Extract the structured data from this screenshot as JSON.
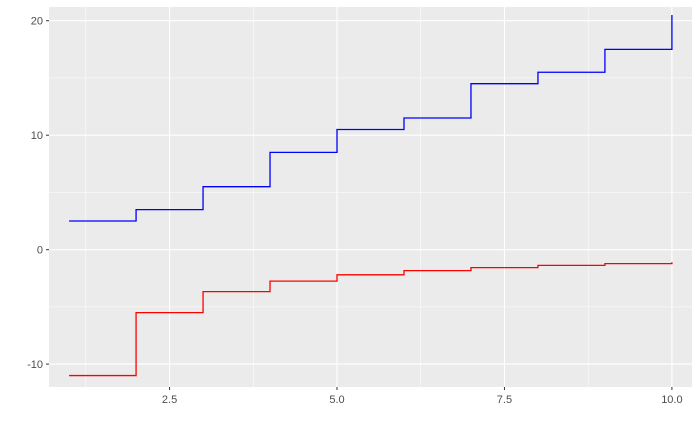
{
  "chart_data": {
    "type": "line",
    "step": true,
    "title": "",
    "xlabel": "",
    "ylabel": "",
    "xlim": [
      0.7,
      10.3
    ],
    "ylim": [
      -12.0,
      21.2
    ],
    "xticks": [
      {
        "value": 2.5,
        "label": "2.5"
      },
      {
        "value": 5.0,
        "label": "5.0"
      },
      {
        "value": 7.5,
        "label": "7.5"
      },
      {
        "value": 10.0,
        "label": "10.0"
      }
    ],
    "yticks": [
      {
        "value": -10,
        "label": "-10"
      },
      {
        "value": 0,
        "label": "0"
      },
      {
        "value": 10,
        "label": "10"
      },
      {
        "value": 20,
        "label": "20"
      }
    ],
    "grid": true,
    "background_color": "#ebebeb",
    "series": [
      {
        "color": "#0000ff",
        "points": [
          [
            1,
            2.5
          ],
          [
            2,
            3.5
          ],
          [
            3,
            5.5
          ],
          [
            4,
            8.5
          ],
          [
            5,
            10.5
          ],
          [
            6,
            11.5
          ],
          [
            7,
            14.5
          ],
          [
            8,
            15.5
          ],
          [
            9,
            17.5
          ],
          [
            10,
            20.5
          ]
        ]
      },
      {
        "color": "#ff0000",
        "points": [
          [
            1,
            -11.0
          ],
          [
            2,
            -5.5
          ],
          [
            3,
            -3.67
          ],
          [
            4,
            -2.75
          ],
          [
            5,
            -2.2
          ],
          [
            6,
            -1.83
          ],
          [
            7,
            -1.57
          ],
          [
            8,
            -1.375
          ],
          [
            9,
            -1.22
          ],
          [
            10,
            -1.1
          ]
        ]
      }
    ]
  }
}
